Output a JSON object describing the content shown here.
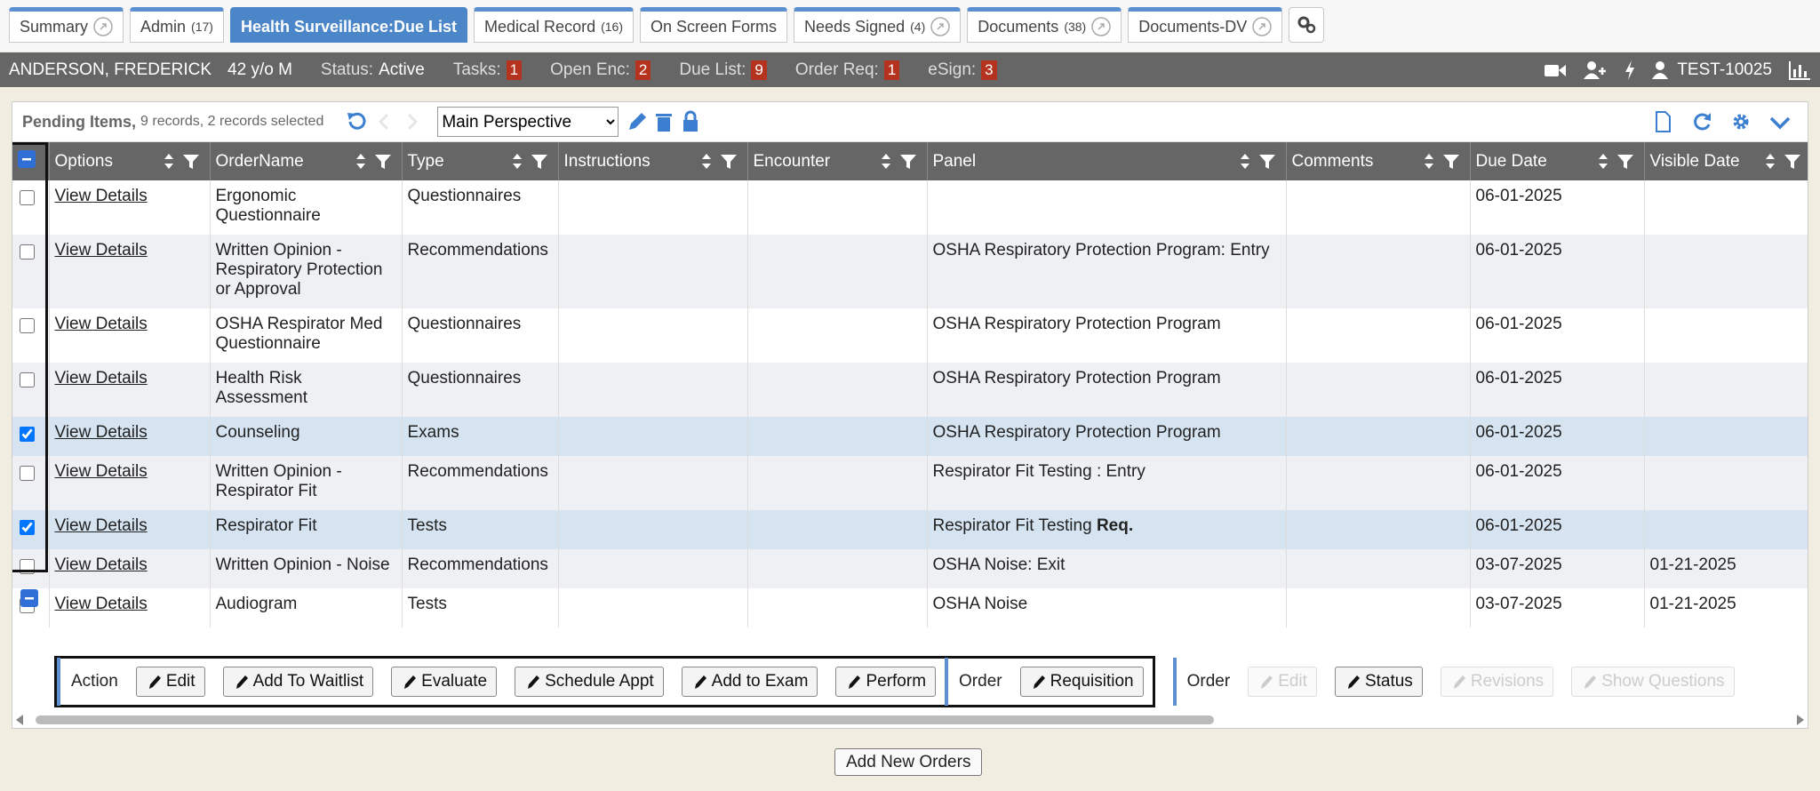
{
  "tabs": [
    {
      "label": "Summary",
      "link": true
    },
    {
      "label": "Admin",
      "count": "(17)"
    },
    {
      "label": "Health Surveillance:Due List",
      "active": true
    },
    {
      "label": "Medical Record",
      "count": "(16)"
    },
    {
      "label": "On Screen Forms"
    },
    {
      "label": "Needs Signed",
      "count": "(4)",
      "link": true
    },
    {
      "label": "Documents",
      "count": "(38)",
      "link": true
    },
    {
      "label": "Documents-DV",
      "link": true
    }
  ],
  "patient": {
    "name": "ANDERSON, FREDERICK",
    "age_sex": "42 y/o M",
    "status_label": "Status:",
    "status": "Active",
    "counters": [
      {
        "label": "Tasks:",
        "value": 1
      },
      {
        "label": "Open Enc:",
        "value": 2
      },
      {
        "label": "Due List:",
        "value": 9
      },
      {
        "label": "Order Req:",
        "value": 1
      },
      {
        "label": "eSign:",
        "value": 3
      }
    ],
    "id": "TEST-10025"
  },
  "grid": {
    "title": "Pending Items,",
    "summary": "9 records, 2 records selected",
    "perspective": "Main Perspective",
    "columns": [
      "Options",
      "OrderName",
      "Type",
      "Instructions",
      "Encounter",
      "Panel",
      "Comments",
      "Due Date",
      "Visible Date"
    ],
    "rows": [
      {
        "selected": false,
        "cells": [
          "View Details",
          "Ergonomic Questionnaire",
          "Questionnaires",
          null,
          null,
          null,
          null,
          "06-01-2025",
          null
        ]
      },
      {
        "selected": false,
        "cells": [
          "View Details",
          "Written Opinion - Respiratory Protection or Approval",
          "Recommendations",
          null,
          null,
          "OSHA Respiratory Protection Program: Entry",
          null,
          "06-01-2025",
          null
        ]
      },
      {
        "selected": false,
        "cells": [
          "View Details",
          "OSHA Respirator Med Questionnaire",
          "Questionnaires",
          null,
          null,
          "OSHA Respiratory Protection Program",
          null,
          "06-01-2025",
          null
        ]
      },
      {
        "selected": false,
        "cells": [
          "View Details",
          "Health Risk Assessment",
          "Questionnaires",
          null,
          null,
          "OSHA Respiratory Protection Program",
          null,
          "06-01-2025",
          null
        ]
      },
      {
        "selected": true,
        "cells": [
          "View Details",
          "Counseling",
          "Exams",
          null,
          null,
          "OSHA Respiratory Protection Program",
          null,
          "06-01-2025",
          null
        ]
      },
      {
        "selected": false,
        "cells": [
          "View Details",
          "Written Opinion - Respirator Fit",
          "Recommendations",
          null,
          null,
          "Respirator Fit Testing : Entry",
          null,
          "06-01-2025",
          null
        ]
      },
      {
        "selected": true,
        "cells": [
          "View Details",
          "Respirator Fit",
          "Tests",
          null,
          null,
          "Respirator Fit Testing",
          null,
          "06-01-2025",
          null
        ],
        "panel_flag": "Req."
      },
      {
        "selected": false,
        "cells": [
          "View Details",
          "Written Opinion - Noise",
          "Recommendations",
          null,
          null,
          "OSHA Noise: Exit",
          null,
          "03-07-2025",
          "01-21-2025"
        ]
      },
      {
        "selected": false,
        "cells": [
          "View Details",
          "Audiogram",
          "Tests",
          null,
          null,
          "OSHA Noise",
          null,
          "03-07-2025",
          "01-21-2025"
        ]
      }
    ]
  },
  "actions": [
    {
      "label": "Action",
      "buttons": [
        {
          "label": "Edit"
        },
        {
          "label": "Add To Waitlist"
        },
        {
          "label": "Evaluate"
        },
        {
          "label": "Schedule Appt"
        },
        {
          "label": "Add to Exam"
        },
        {
          "label": "Perform"
        }
      ]
    },
    {
      "label": "Order",
      "buttons": [
        {
          "label": "Requisition"
        }
      ]
    },
    {
      "label": "Order",
      "buttons": [
        {
          "label": "Edit",
          "disabled": true
        },
        {
          "label": "Status"
        },
        {
          "label": "Revisions",
          "disabled": true
        },
        {
          "label": "Show Questions",
          "disabled": true
        }
      ]
    }
  ],
  "footer_button": "Add New Orders"
}
